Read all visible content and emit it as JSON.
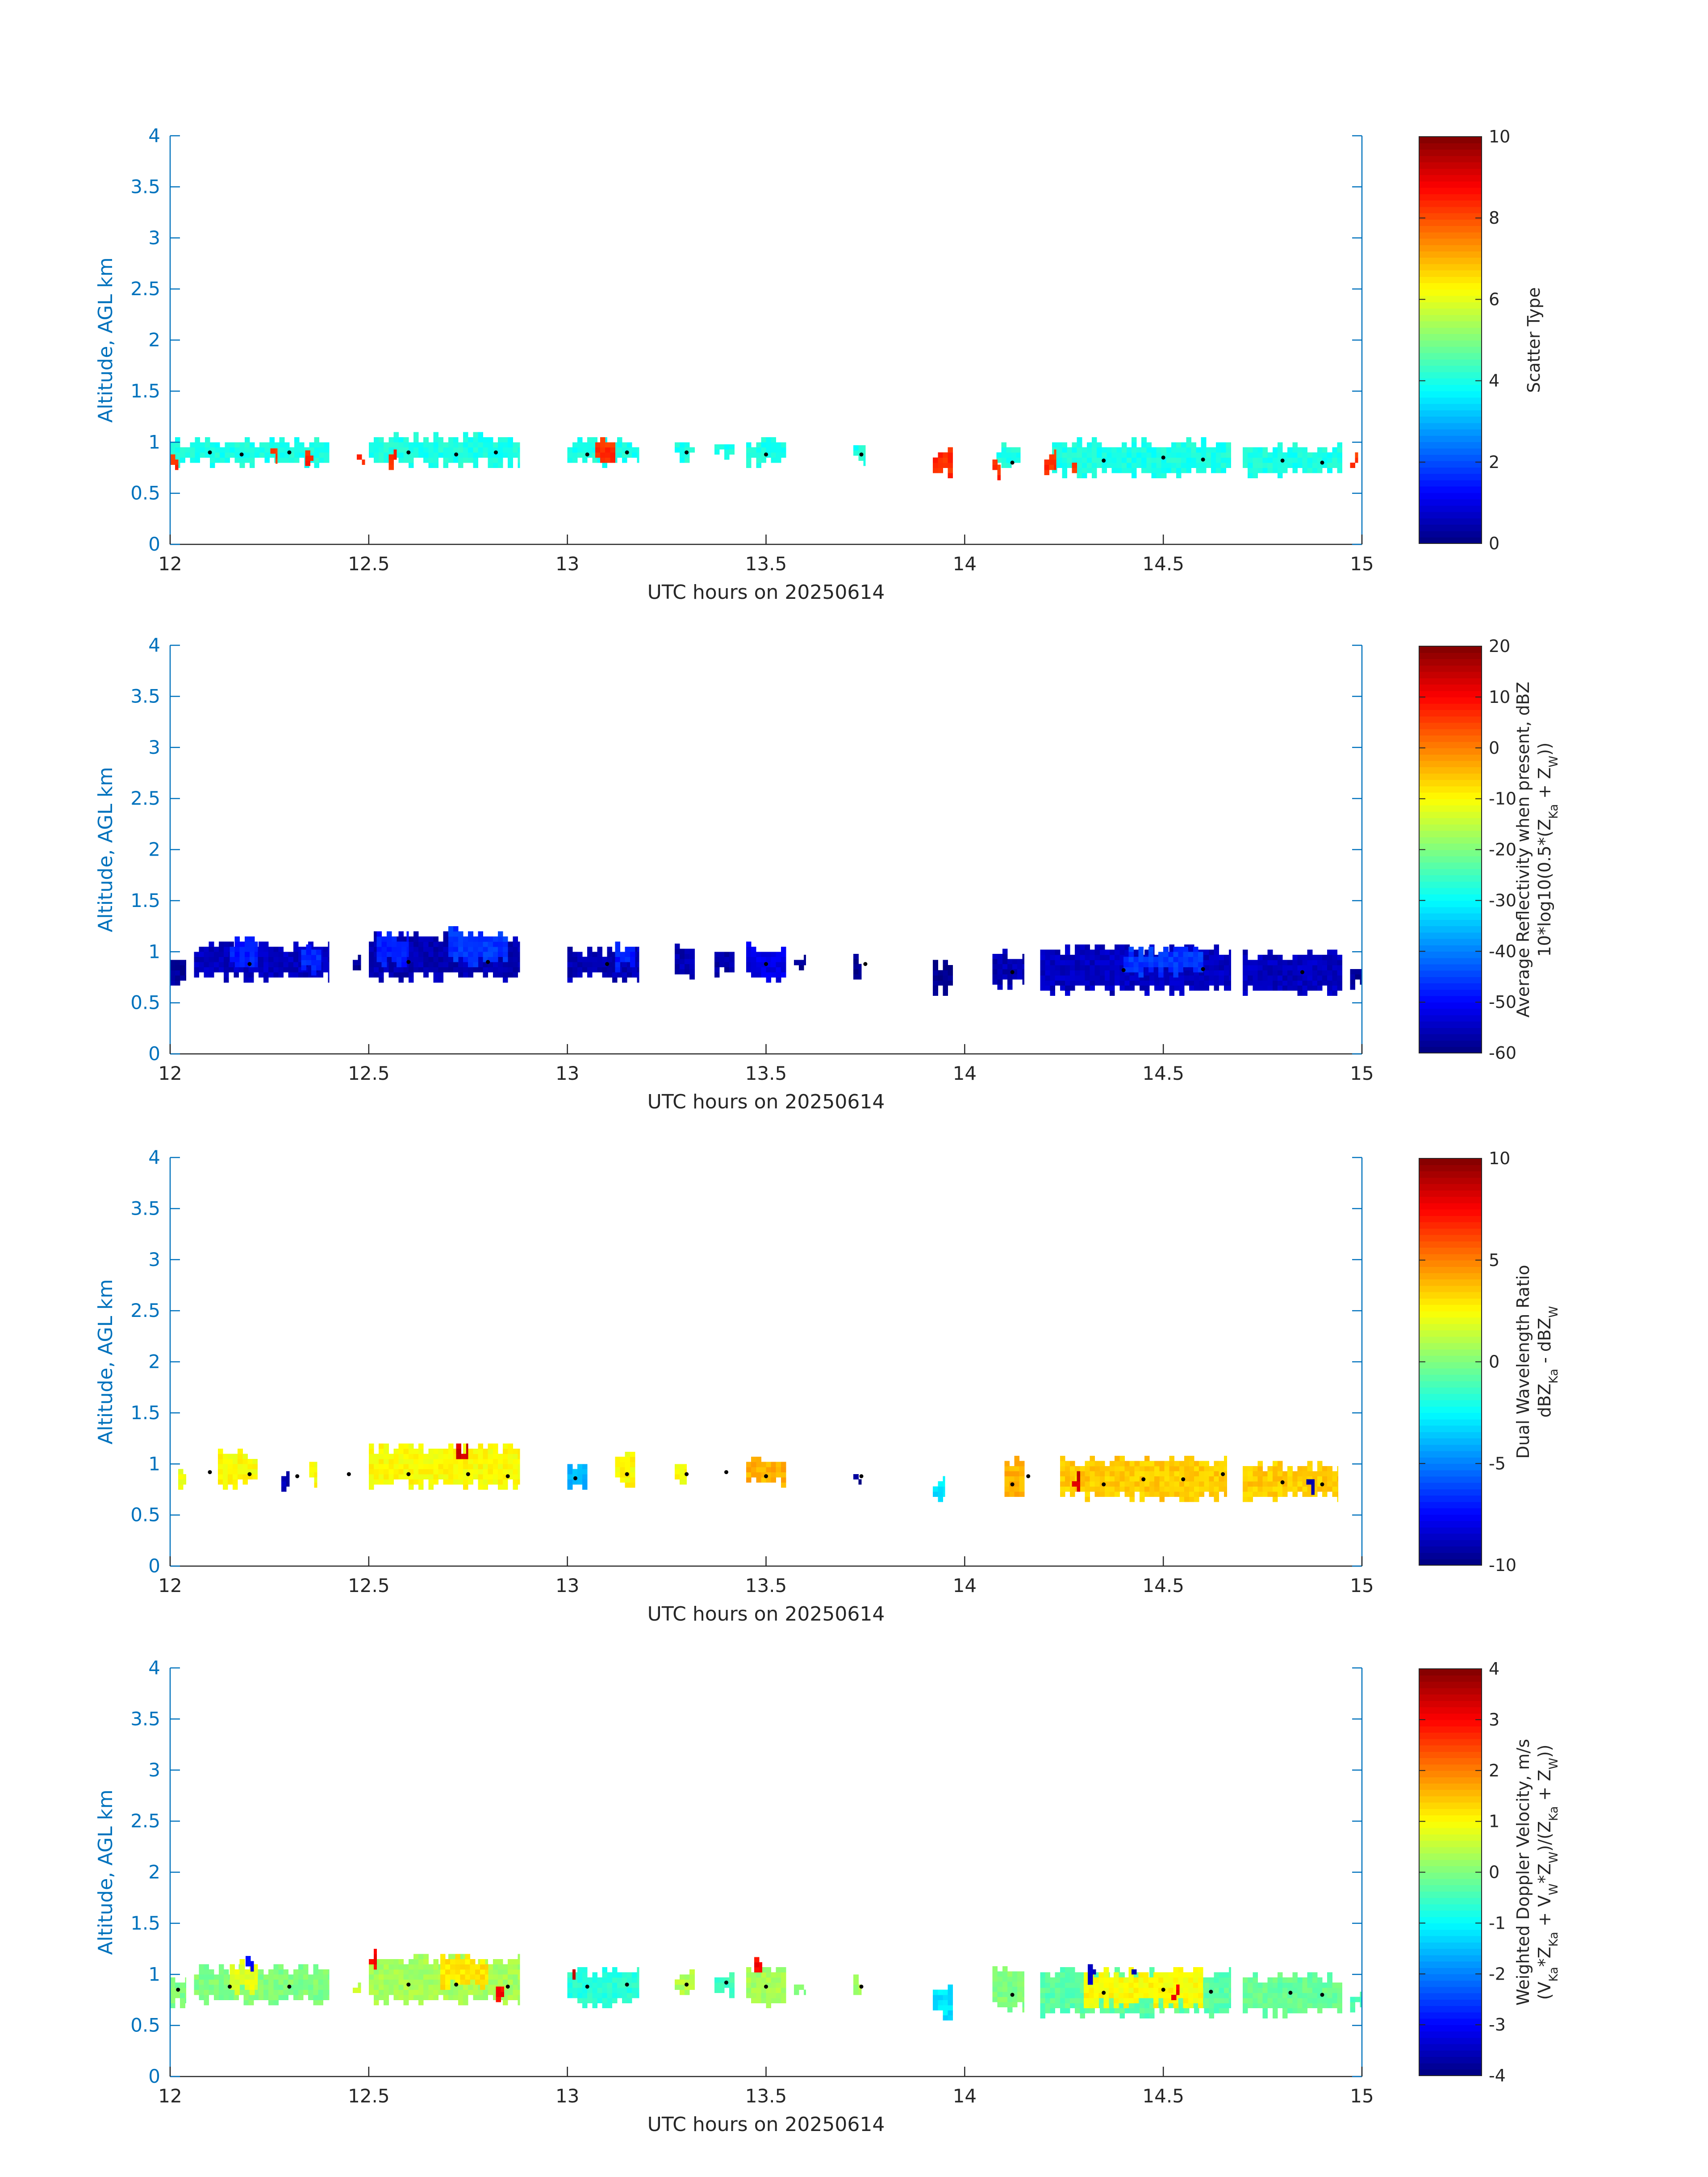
{
  "chart_data": [
    {
      "type": "heatmap",
      "xlabel": "UTC hours on 20250614",
      "ylabel": "Altitude, AGL km",
      "xlim": [
        12,
        15
      ],
      "ylim": [
        0,
        4
      ],
      "xticks": [
        "12",
        "12.5",
        "13",
        "13.5",
        "14",
        "14.5",
        "15"
      ],
      "yticks": [
        "0",
        "0.5",
        "1",
        "1.5",
        "2",
        "2.5",
        "3",
        "3.5",
        "4"
      ],
      "colorbar": {
        "label_lines": [
          "Scatter Type"
        ],
        "clim": [
          0,
          10
        ],
        "ticks": [
          "0",
          "2",
          "4",
          "6",
          "8",
          "10"
        ]
      },
      "colormap": "jet",
      "default_value": 4,
      "segments": [
        {
          "t0": 12.0,
          "t1": 12.4,
          "bottom": 0.8,
          "top": 1.0,
          "value": 4
        },
        {
          "t0": 12.5,
          "t1": 12.88,
          "bottom": 0.8,
          "top": 1.05,
          "value": 4
        },
        {
          "t0": 13.0,
          "t1": 13.18,
          "bottom": 0.8,
          "top": 1.0,
          "value": 4
        },
        {
          "t0": 13.27,
          "t1": 13.32,
          "bottom": 0.85,
          "top": 0.97,
          "value": 4
        },
        {
          "t0": 13.37,
          "t1": 13.42,
          "bottom": 0.88,
          "top": 0.98,
          "value": 4
        },
        {
          "t0": 13.45,
          "t1": 13.55,
          "bottom": 0.8,
          "top": 1.0,
          "value": 4
        },
        {
          "t0": 13.72,
          "t1": 13.75,
          "bottom": 0.82,
          "top": 0.95,
          "value": 4
        },
        {
          "t0": 14.08,
          "t1": 14.14,
          "bottom": 0.75,
          "top": 0.95,
          "value": 4
        },
        {
          "t0": 14.22,
          "t1": 14.67,
          "bottom": 0.7,
          "top": 0.98,
          "value": 4
        },
        {
          "t0": 14.7,
          "t1": 14.95,
          "bottom": 0.7,
          "top": 0.95,
          "value": 4
        },
        {
          "t0": 12.0,
          "t1": 12.02,
          "bottom": 0.78,
          "top": 0.85,
          "value": 8.3
        },
        {
          "t0": 12.24,
          "t1": 12.27,
          "bottom": 0.84,
          "top": 0.92,
          "value": 8.3
        },
        {
          "t0": 12.34,
          "t1": 12.36,
          "bottom": 0.82,
          "top": 0.92,
          "value": 8.3
        },
        {
          "t0": 12.47,
          "t1": 12.49,
          "bottom": 0.78,
          "top": 0.88,
          "value": 8.3
        },
        {
          "t0": 12.55,
          "t1": 12.57,
          "bottom": 0.78,
          "top": 0.9,
          "value": 8.3
        },
        {
          "t0": 13.07,
          "t1": 13.12,
          "bottom": 0.8,
          "top": 0.98,
          "value": 8.3
        },
        {
          "t0": 13.92,
          "t1": 13.97,
          "bottom": 0.7,
          "top": 0.88,
          "value": 8.3
        },
        {
          "t0": 14.07,
          "t1": 14.09,
          "bottom": 0.68,
          "top": 0.78,
          "value": 8.3
        },
        {
          "t0": 14.2,
          "t1": 14.23,
          "bottom": 0.68,
          "top": 0.85,
          "value": 8.3
        },
        {
          "t0": 14.27,
          "t1": 14.29,
          "bottom": 0.75,
          "top": 0.85,
          "value": 8.3
        },
        {
          "t0": 14.97,
          "t1": 14.99,
          "bottom": 0.75,
          "top": 0.85,
          "value": 8.3
        }
      ],
      "markers": [
        {
          "t": 12.1,
          "alt": 0.9
        },
        {
          "t": 12.18,
          "alt": 0.88
        },
        {
          "t": 12.3,
          "alt": 0.9
        },
        {
          "t": 12.6,
          "alt": 0.9
        },
        {
          "t": 12.72,
          "alt": 0.88
        },
        {
          "t": 12.82,
          "alt": 0.9
        },
        {
          "t": 13.05,
          "alt": 0.88
        },
        {
          "t": 13.15,
          "alt": 0.9
        },
        {
          "t": 13.3,
          "alt": 0.9
        },
        {
          "t": 13.5,
          "alt": 0.88
        },
        {
          "t": 13.74,
          "alt": 0.88
        },
        {
          "t": 14.12,
          "alt": 0.8
        },
        {
          "t": 14.35,
          "alt": 0.82
        },
        {
          "t": 14.5,
          "alt": 0.85
        },
        {
          "t": 14.6,
          "alt": 0.83
        },
        {
          "t": 14.8,
          "alt": 0.82
        },
        {
          "t": 14.9,
          "alt": 0.8
        }
      ]
    },
    {
      "type": "heatmap",
      "xlabel": "UTC hours on 20250614",
      "ylabel": "Altitude, AGL km",
      "xlim": [
        12,
        15
      ],
      "ylim": [
        0,
        4
      ],
      "xticks": [
        "12",
        "12.5",
        "13",
        "13.5",
        "14",
        "14.5",
        "15"
      ],
      "yticks": [
        "0",
        "0.5",
        "1",
        "1.5",
        "2",
        "2.5",
        "3",
        "3.5",
        "4"
      ],
      "colorbar": {
        "label_lines": [
          "Average Reflectivity when present, dBZ",
          "10*log10(0.5*(Z_Ka + Z_W))"
        ],
        "clim": [
          -60,
          20
        ],
        "ticks": [
          "-60",
          "-50",
          "-40",
          "-30",
          "-20",
          "-10",
          "0",
          "10",
          "20"
        ]
      },
      "colormap": "jet",
      "default_value": -56,
      "segments": [
        {
          "t0": 12.0,
          "t1": 12.04,
          "bottom": 0.72,
          "top": 0.92,
          "value": -58
        },
        {
          "t0": 12.06,
          "t1": 12.4,
          "bottom": 0.75,
          "top": 1.05,
          "value": -55
        },
        {
          "t0": 12.15,
          "t1": 12.22,
          "bottom": 0.85,
          "top": 1.1,
          "value": -48
        },
        {
          "t0": 12.33,
          "t1": 12.38,
          "bottom": 0.82,
          "top": 1.0,
          "value": -47
        },
        {
          "t0": 12.46,
          "t1": 12.48,
          "bottom": 0.82,
          "top": 0.92,
          "value": -58
        },
        {
          "t0": 12.5,
          "t1": 12.88,
          "bottom": 0.75,
          "top": 1.15,
          "value": -56
        },
        {
          "t0": 12.52,
          "t1": 12.6,
          "bottom": 0.9,
          "top": 1.12,
          "value": -48
        },
        {
          "t0": 12.7,
          "t1": 12.85,
          "bottom": 0.9,
          "top": 1.18,
          "value": -46
        },
        {
          "t0": 13.0,
          "t1": 13.18,
          "bottom": 0.75,
          "top": 1.0,
          "value": -56
        },
        {
          "t0": 13.12,
          "t1": 13.17,
          "bottom": 0.85,
          "top": 1.05,
          "value": -48
        },
        {
          "t0": 13.27,
          "t1": 13.32,
          "bottom": 0.78,
          "top": 1.0,
          "value": -56
        },
        {
          "t0": 13.37,
          "t1": 13.42,
          "bottom": 0.8,
          "top": 1.0,
          "value": -57
        },
        {
          "t0": 13.45,
          "t1": 13.55,
          "bottom": 0.75,
          "top": 1.05,
          "value": -52
        },
        {
          "t0": 13.57,
          "t1": 13.6,
          "bottom": 0.82,
          "top": 0.9,
          "value": -58
        },
        {
          "t0": 13.72,
          "t1": 13.74,
          "bottom": 0.78,
          "top": 0.9,
          "value": -59
        },
        {
          "t0": 13.92,
          "t1": 13.97,
          "bottom": 0.62,
          "top": 0.85,
          "value": -59
        },
        {
          "t0": 14.07,
          "t1": 14.15,
          "bottom": 0.68,
          "top": 0.98,
          "value": -56
        },
        {
          "t0": 14.19,
          "t1": 14.67,
          "bottom": 0.62,
          "top": 1.02,
          "value": -55
        },
        {
          "t0": 14.4,
          "t1": 14.6,
          "bottom": 0.8,
          "top": 0.98,
          "value": -46
        },
        {
          "t0": 14.7,
          "t1": 14.95,
          "bottom": 0.62,
          "top": 0.95,
          "value": -55
        },
        {
          "t0": 14.97,
          "t1": 15.0,
          "bottom": 0.68,
          "top": 0.82,
          "value": -58
        }
      ],
      "markers": [
        {
          "t": 12.2,
          "alt": 0.88
        },
        {
          "t": 12.6,
          "alt": 0.9
        },
        {
          "t": 12.8,
          "alt": 0.9
        },
        {
          "t": 13.1,
          "alt": 0.88
        },
        {
          "t": 13.5,
          "alt": 0.88
        },
        {
          "t": 13.75,
          "alt": 0.88
        },
        {
          "t": 14.12,
          "alt": 0.8
        },
        {
          "t": 14.4,
          "alt": 0.82
        },
        {
          "t": 14.6,
          "alt": 0.83
        },
        {
          "t": 14.85,
          "alt": 0.8
        }
      ]
    },
    {
      "type": "heatmap",
      "xlabel": "UTC hours on 20250614",
      "ylabel": "Altitude, AGL km",
      "xlim": [
        12,
        15
      ],
      "ylim": [
        0,
        4
      ],
      "xticks": [
        "12",
        "12.5",
        "13",
        "13.5",
        "14",
        "14.5",
        "15"
      ],
      "yticks": [
        "0",
        "0.5",
        "1",
        "1.5",
        "2",
        "2.5",
        "3",
        "3.5",
        "4"
      ],
      "colorbar": {
        "label_lines": [
          "Dual Wavelength Ratio",
          "dBZ_Ka - dBZ_W"
        ],
        "clim": [
          -10,
          10
        ],
        "ticks": [
          "-10",
          "-5",
          "0",
          "5",
          "10"
        ]
      },
      "colormap": "jet",
      "default_value": 2,
      "segments": [
        {
          "t0": 12.02,
          "t1": 12.04,
          "bottom": 0.75,
          "top": 0.9,
          "value": 2
        },
        {
          "t0": 12.12,
          "t1": 12.22,
          "bottom": 0.8,
          "top": 1.1,
          "value": 2.5
        },
        {
          "t0": 12.28,
          "t1": 12.3,
          "bottom": 0.78,
          "top": 0.88,
          "value": -9
        },
        {
          "t0": 12.35,
          "t1": 12.37,
          "bottom": 0.82,
          "top": 1.05,
          "value": 2.5
        },
        {
          "t0": 12.5,
          "t1": 12.88,
          "bottom": 0.8,
          "top": 1.15,
          "value": 2.5
        },
        {
          "t0": 12.72,
          "t1": 12.75,
          "bottom": 1.05,
          "top": 1.12,
          "value": 8.5
        },
        {
          "t0": 13.0,
          "t1": 13.05,
          "bottom": 0.8,
          "top": 0.98,
          "value": -4
        },
        {
          "t0": 13.12,
          "t1": 13.17,
          "bottom": 0.82,
          "top": 1.08,
          "value": 2.5
        },
        {
          "t0": 13.27,
          "t1": 13.3,
          "bottom": 0.85,
          "top": 0.97,
          "value": 2.5
        },
        {
          "t0": 13.45,
          "t1": 13.55,
          "bottom": 0.82,
          "top": 1.02,
          "value": 4
        },
        {
          "t0": 13.72,
          "t1": 13.74,
          "bottom": 0.85,
          "top": 0.9,
          "value": -9.5
        },
        {
          "t0": 13.92,
          "t1": 13.95,
          "bottom": 0.68,
          "top": 0.82,
          "value": -3
        },
        {
          "t0": 14.1,
          "t1": 14.15,
          "bottom": 0.68,
          "top": 1.0,
          "value": 4
        },
        {
          "t0": 14.24,
          "t1": 14.66,
          "bottom": 0.68,
          "top": 1.0,
          "value": 3.5
        },
        {
          "t0": 14.7,
          "t1": 14.94,
          "bottom": 0.68,
          "top": 0.95,
          "value": 3.5
        },
        {
          "t0": 14.27,
          "t1": 14.29,
          "bottom": 0.78,
          "top": 0.85,
          "value": 8.5
        },
        {
          "t0": 14.86,
          "t1": 14.88,
          "bottom": 0.75,
          "top": 0.82,
          "value": -9
        }
      ],
      "markers": [
        {
          "t": 12.1,
          "alt": 0.92
        },
        {
          "t": 12.2,
          "alt": 0.9
        },
        {
          "t": 12.32,
          "alt": 0.88
        },
        {
          "t": 12.45,
          "alt": 0.9
        },
        {
          "t": 12.6,
          "alt": 0.9
        },
        {
          "t": 12.75,
          "alt": 0.9
        },
        {
          "t": 12.85,
          "alt": 0.88
        },
        {
          "t": 13.02,
          "alt": 0.86
        },
        {
          "t": 13.15,
          "alt": 0.9
        },
        {
          "t": 13.3,
          "alt": 0.9
        },
        {
          "t": 13.4,
          "alt": 0.92
        },
        {
          "t": 13.5,
          "alt": 0.88
        },
        {
          "t": 13.74,
          "alt": 0.88
        },
        {
          "t": 14.12,
          "alt": 0.8
        },
        {
          "t": 14.16,
          "alt": 0.88
        },
        {
          "t": 14.35,
          "alt": 0.8
        },
        {
          "t": 14.45,
          "alt": 0.85
        },
        {
          "t": 14.55,
          "alt": 0.85
        },
        {
          "t": 14.65,
          "alt": 0.9
        },
        {
          "t": 14.8,
          "alt": 0.82
        },
        {
          "t": 14.9,
          "alt": 0.8
        }
      ]
    },
    {
      "type": "heatmap",
      "xlabel": "UTC hours on 20250614",
      "ylabel": "Altitude, AGL km",
      "xlim": [
        12,
        15
      ],
      "ylim": [
        0,
        4
      ],
      "xticks": [
        "12",
        "12.5",
        "13",
        "13.5",
        "14",
        "14.5",
        "15"
      ],
      "yticks": [
        "0",
        "0.5",
        "1",
        "1.5",
        "2",
        "2.5",
        "3",
        "3.5",
        "4"
      ],
      "colorbar": {
        "label_lines": [
          "Weighted Doppler Velocity, m/s",
          "(V_Ka*Z_Ka + V_W*Z_W)/(Z_Ka + Z_W))"
        ],
        "clim": [
          -4,
          4
        ],
        "ticks": [
          "-4",
          "-3",
          "-2",
          "-1",
          "0",
          "1",
          "2",
          "3",
          "4"
        ]
      },
      "colormap": "jet",
      "default_value": 0,
      "segments": [
        {
          "t0": 12.0,
          "t1": 12.04,
          "bottom": 0.72,
          "top": 0.92,
          "value": 0
        },
        {
          "t0": 12.06,
          "t1": 12.4,
          "bottom": 0.75,
          "top": 1.05,
          "value": 0
        },
        {
          "t0": 12.15,
          "t1": 12.22,
          "bottom": 0.85,
          "top": 1.1,
          "value": 0.8
        },
        {
          "t0": 12.19,
          "t1": 12.21,
          "bottom": 1.08,
          "top": 1.15,
          "value": -3
        },
        {
          "t0": 12.46,
          "t1": 12.48,
          "bottom": 0.82,
          "top": 0.92,
          "value": 0.5
        },
        {
          "t0": 12.5,
          "t1": 12.88,
          "bottom": 0.75,
          "top": 1.15,
          "value": 0.3
        },
        {
          "t0": 12.68,
          "t1": 12.8,
          "bottom": 0.9,
          "top": 1.12,
          "value": 1.2
        },
        {
          "t0": 12.5,
          "t1": 12.52,
          "bottom": 1.1,
          "top": 1.18,
          "value": 3
        },
        {
          "t0": 12.82,
          "t1": 12.84,
          "bottom": 0.78,
          "top": 0.88,
          "value": 3
        },
        {
          "t0": 13.0,
          "t1": 13.18,
          "bottom": 0.72,
          "top": 1.0,
          "value": -0.7
        },
        {
          "t0": 13.0,
          "t1": 13.02,
          "bottom": 0.95,
          "top": 1.02,
          "value": 3.5
        },
        {
          "t0": 13.27,
          "t1": 13.32,
          "bottom": 0.8,
          "top": 1.0,
          "value": 0.4
        },
        {
          "t0": 13.37,
          "t1": 13.42,
          "bottom": 0.82,
          "top": 0.98,
          "value": -0.5
        },
        {
          "t0": 13.45,
          "t1": 13.55,
          "bottom": 0.72,
          "top": 1.05,
          "value": 0.3
        },
        {
          "t0": 13.47,
          "t1": 13.49,
          "bottom": 1.02,
          "top": 1.1,
          "value": 3
        },
        {
          "t0": 13.57,
          "t1": 13.6,
          "bottom": 0.8,
          "top": 0.9,
          "value": 0
        },
        {
          "t0": 13.72,
          "t1": 13.74,
          "bottom": 0.8,
          "top": 0.92,
          "value": 0.3
        },
        {
          "t0": 13.92,
          "t1": 13.97,
          "bottom": 0.6,
          "top": 0.85,
          "value": -1.2
        },
        {
          "t0": 14.07,
          "t1": 14.15,
          "bottom": 0.68,
          "top": 1.0,
          "value": 0
        },
        {
          "t0": 14.19,
          "t1": 14.67,
          "bottom": 0.62,
          "top": 1.02,
          "value": -0.3
        },
        {
          "t0": 14.3,
          "t1": 14.6,
          "bottom": 0.72,
          "top": 0.98,
          "value": 1.0
        },
        {
          "t0": 14.31,
          "t1": 14.33,
          "bottom": 0.95,
          "top": 1.02,
          "value": -3.5
        },
        {
          "t0": 14.42,
          "t1": 14.44,
          "bottom": 1.0,
          "top": 1.08,
          "value": -3.8
        },
        {
          "t0": 14.52,
          "t1": 14.54,
          "bottom": 0.75,
          "top": 0.82,
          "value": 3
        },
        {
          "t0": 14.7,
          "t1": 14.95,
          "bottom": 0.62,
          "top": 0.95,
          "value": -0.2
        },
        {
          "t0": 14.97,
          "t1": 15.0,
          "bottom": 0.68,
          "top": 0.82,
          "value": -0.4
        }
      ],
      "markers": [
        {
          "t": 12.02,
          "alt": 0.85
        },
        {
          "t": 12.15,
          "alt": 0.88
        },
        {
          "t": 12.3,
          "alt": 0.88
        },
        {
          "t": 12.6,
          "alt": 0.9
        },
        {
          "t": 12.72,
          "alt": 0.9
        },
        {
          "t": 12.85,
          "alt": 0.88
        },
        {
          "t": 13.05,
          "alt": 0.88
        },
        {
          "t": 13.15,
          "alt": 0.9
        },
        {
          "t": 13.3,
          "alt": 0.9
        },
        {
          "t": 13.4,
          "alt": 0.92
        },
        {
          "t": 13.5,
          "alt": 0.88
        },
        {
          "t": 13.74,
          "alt": 0.88
        },
        {
          "t": 14.12,
          "alt": 0.8
        },
        {
          "t": 14.35,
          "alt": 0.82
        },
        {
          "t": 14.5,
          "alt": 0.85
        },
        {
          "t": 14.62,
          "alt": 0.83
        },
        {
          "t": 14.82,
          "alt": 0.82
        },
        {
          "t": 14.9,
          "alt": 0.8
        }
      ]
    }
  ]
}
